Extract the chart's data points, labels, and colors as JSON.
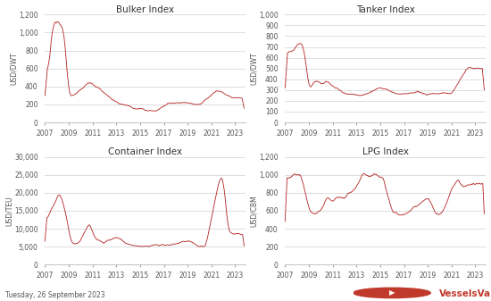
{
  "title_bulker": "Bulker Index",
  "title_tanker": "Tanker Index",
  "title_container": "Container Index",
  "title_lpg": "LPG Index",
  "ylabel_bulker": "USD/DWT",
  "ylabel_tanker": "USD/DWT",
  "ylabel_container": "USD/TEU",
  "ylabel_lpg": "USD/CBM",
  "date_label": "Tuesday, 26 September 2023",
  "line_color": "#b22222",
  "bg_color": "#ffffff",
  "grid_color": "#d0d0d0",
  "text_color": "#333333",
  "logo_text": "VesselsValue",
  "logo_color": "#c0392b",
  "yticks_bulker": [
    0,
    200,
    400,
    600,
    800,
    1000,
    1200
  ],
  "yticks_tanker": [
    0,
    100,
    200,
    300,
    400,
    500,
    600,
    700,
    800,
    900,
    1000
  ],
  "yticks_container": [
    0,
    5000,
    10000,
    15000,
    20000,
    25000,
    30000
  ],
  "yticks_lpg": [
    0,
    200,
    400,
    600,
    800,
    1000,
    1200
  ],
  "ylim_bulker": [
    0,
    1200
  ],
  "ylim_tanker": [
    0,
    1000
  ],
  "ylim_container": [
    0,
    30000
  ],
  "ylim_lpg": [
    0,
    1200
  ],
  "xticks": [
    2007,
    2009,
    2011,
    2013,
    2015,
    2017,
    2019,
    2021,
    2023
  ]
}
